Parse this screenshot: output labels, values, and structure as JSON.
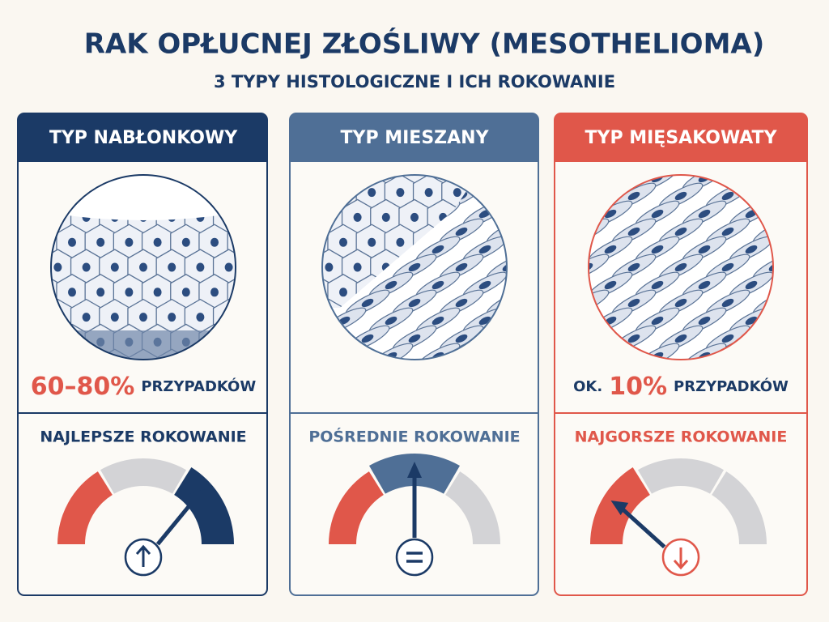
{
  "header": {
    "title": "RAK OPŁUCNEJ ZŁOŚLIWY (MESOTHELIOMA)",
    "subtitle": "3 TYPY HISTOLOGICZNE I ICH ROKOWANIE"
  },
  "cards": [
    {
      "title": "TYP NABŁONKOWY",
      "stat_value": "60–80%",
      "stat_label": "PRZYPADKÓW",
      "prognosis": "NAJLEPSZE ROKOWANIE"
    },
    {
      "title": "TYP MIESZANY",
      "prognosis": "POŚREDNIE ROKOWANIE"
    },
    {
      "title": "TYP MIĘSAKOWATY",
      "stat_prefix": "OK.",
      "stat_value": "10%",
      "stat_label": "PRZYPADKÓW",
      "prognosis": "NAJGORSZE ROKOWANIE"
    }
  ]
}
